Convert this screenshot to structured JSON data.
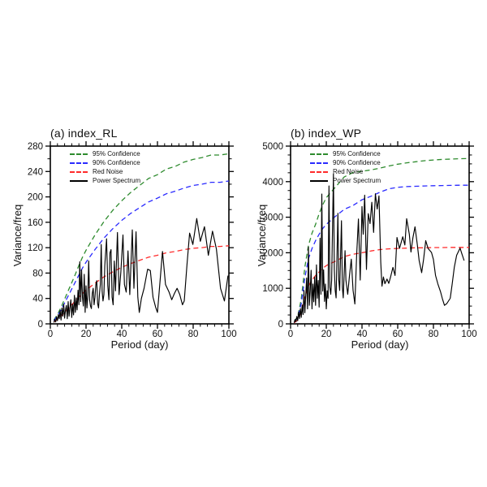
{
  "page": {
    "background": "#ffffff"
  },
  "chart_data": [
    {
      "type": "line",
      "title": "(a) index_RL",
      "xlabel": "Period (day)",
      "ylabel": "Variance/freq",
      "xlim": [
        0,
        100
      ],
      "ylim": [
        0,
        280
      ],
      "x_ticks": [
        0,
        20,
        40,
        60,
        80,
        100
      ],
      "y_ticks": [
        0,
        40,
        80,
        120,
        160,
        200,
        240,
        280
      ],
      "x_minor_step": 4,
      "y_minor_step": 20,
      "grid": false,
      "legend_position": "upper-left",
      "series": [
        {
          "name": "95% Confidence",
          "color": "#2e8b2e",
          "dashed": true,
          "x": [
            2,
            4,
            6,
            8,
            10,
            12,
            14,
            16,
            18,
            20,
            25,
            30,
            35,
            40,
            45,
            50,
            55,
            60,
            65,
            70,
            75,
            80,
            85,
            90,
            95,
            100
          ],
          "values": [
            6,
            15,
            26,
            39,
            52,
            65,
            78,
            92,
            105,
            116,
            140,
            161,
            179,
            194,
            207,
            218,
            229,
            235,
            244,
            248,
            255,
            259,
            262,
            266,
            266,
            268
          ]
        },
        {
          "name": "90% Confidence",
          "color": "#2a2aff",
          "dashed": true,
          "x": [
            2,
            4,
            6,
            8,
            10,
            12,
            14,
            16,
            18,
            20,
            25,
            30,
            35,
            40,
            45,
            50,
            55,
            60,
            65,
            70,
            75,
            80,
            85,
            90,
            95,
            100
          ],
          "values": [
            5,
            13,
            22,
            33,
            44,
            55,
            66,
            77,
            88,
            97,
            117,
            135,
            150,
            163,
            174,
            183,
            192,
            198,
            205,
            209,
            214,
            218,
            220,
            223,
            223,
            225
          ]
        },
        {
          "name": "Red Noise",
          "color": "#ff2a2a",
          "dashed": true,
          "x": [
            2,
            4,
            6,
            8,
            10,
            12,
            14,
            16,
            18,
            20,
            25,
            30,
            35,
            40,
            45,
            50,
            55,
            60,
            65,
            70,
            75,
            80,
            85,
            90,
            95,
            100
          ],
          "values": [
            3,
            7,
            12,
            18,
            24,
            30,
            36,
            42,
            48,
            53,
            64,
            74,
            82,
            89,
            95,
            100,
            105,
            108,
            112,
            114,
            117,
            119,
            120,
            122,
            122,
            123
          ]
        },
        {
          "name": "Power Spectrum",
          "color": "#000000",
          "dashed": false,
          "x": [
            2,
            2.5,
            3,
            3.5,
            4,
            4.5,
            5,
            5.5,
            6,
            6.5,
            7,
            7.5,
            8,
            8.5,
            9,
            9.5,
            10,
            10.5,
            11,
            11.5,
            12,
            12.5,
            13,
            13.5,
            14,
            14.5,
            15,
            15.5,
            16,
            16.5,
            17,
            17.5,
            18,
            18.5,
            19,
            19.5,
            20,
            20.5,
            21,
            21.5,
            22,
            22.5,
            23,
            23.5,
            24,
            24.5,
            25,
            25.5,
            26,
            26.5,
            27,
            27.5,
            28,
            28.5,
            29,
            29.5,
            30,
            30.5,
            31.5,
            32.2,
            32.8,
            33.4,
            34,
            34.6,
            35.2,
            35.8,
            36.5,
            37.6,
            38.5,
            39.5,
            40.7,
            41.5,
            42.5,
            43.5,
            44.5,
            45.9,
            46.8,
            48,
            49,
            49.8,
            51,
            52.5,
            54.5,
            56,
            57.5,
            59,
            60,
            61,
            62.8,
            64.5,
            66.5,
            68,
            69.5,
            71,
            72.5,
            74,
            75,
            76.5,
            78,
            79.8,
            82,
            84,
            86.3,
            88.5,
            90.8,
            93,
            95.3,
            97.5,
            99.5
          ],
          "values": [
            2,
            7,
            3,
            11,
            5,
            15,
            8,
            21,
            6,
            25,
            12,
            31,
            9,
            22,
            29,
            8,
            35,
            12,
            26,
            38,
            10,
            31,
            14,
            45,
            18,
            41,
            22,
            53,
            30,
            98,
            35,
            85,
            42,
            28,
            78,
            18,
            60,
            25,
            45,
            99,
            38,
            28,
            24,
            48,
            56,
            30,
            42,
            62,
            68,
            32,
            25,
            46,
            62,
            125,
            52,
            36,
            46,
            92,
            134,
            60,
            38,
            112,
            117,
            42,
            30,
            99,
            52,
            144,
            46,
            82,
            140,
            62,
            50,
            115,
            46,
            148,
            56,
            145,
            42,
            18,
            40,
            56,
            86,
            84,
            42,
            26,
            18,
            52,
            114,
            62,
            50,
            38,
            48,
            56,
            46,
            30,
            36,
            92,
            143,
            125,
            166,
            130,
            153,
            108,
            146,
            118,
            56,
            36,
            76
          ]
        }
      ]
    },
    {
      "type": "line",
      "title": "(b) index_WP",
      "xlabel": "Period (day)",
      "ylabel": "Variance/freq",
      "xlim": [
        0,
        100
      ],
      "ylim": [
        0,
        5000
      ],
      "x_ticks": [
        0,
        20,
        40,
        60,
        80,
        100
      ],
      "y_ticks": [
        0,
        1000,
        2000,
        3000,
        4000,
        5000
      ],
      "x_minor_step": 4,
      "y_minor_step": 250,
      "grid": false,
      "legend_position": "upper-left",
      "series": [
        {
          "name": "95% Confidence",
          "color": "#2e8b2e",
          "dashed": true,
          "x": [
            2,
            4,
            6,
            8,
            10,
            12,
            14,
            16,
            18,
            20,
            25,
            30,
            35,
            40,
            45,
            50,
            55,
            60,
            65,
            70,
            75,
            80,
            85,
            90,
            95,
            100
          ],
          "values": [
            60,
            210,
            700,
            1600,
            2200,
            2550,
            2800,
            3100,
            3350,
            3550,
            3840,
            4130,
            4260,
            4290,
            4330,
            4380,
            4440,
            4490,
            4530,
            4560,
            4590,
            4610,
            4625,
            4635,
            4645,
            4650
          ]
        },
        {
          "name": "90% Confidence",
          "color": "#2a2aff",
          "dashed": true,
          "x": [
            2,
            4,
            6,
            8,
            10,
            12,
            14,
            16,
            18,
            20,
            25,
            30,
            35,
            40,
            45,
            50,
            55,
            60,
            65,
            70,
            75,
            80,
            85,
            90,
            95,
            100
          ],
          "values": [
            50,
            175,
            580,
            1300,
            1830,
            2120,
            2340,
            2520,
            2680,
            2800,
            3020,
            3220,
            3330,
            3490,
            3590,
            3700,
            3800,
            3840,
            3860,
            3870,
            3880,
            3885,
            3890,
            3895,
            3900,
            3900
          ]
        },
        {
          "name": "Red Noise",
          "color": "#ff2a2a",
          "dashed": true,
          "x": [
            2,
            4,
            6,
            8,
            10,
            12,
            14,
            16,
            18,
            20,
            25,
            30,
            35,
            40,
            45,
            50,
            55,
            60,
            65,
            70,
            75,
            80,
            85,
            90,
            95,
            100
          ],
          "values": [
            30,
            110,
            340,
            750,
            1060,
            1230,
            1360,
            1460,
            1560,
            1640,
            1760,
            1890,
            1960,
            2000,
            2050,
            2090,
            2110,
            2120,
            2130,
            2140,
            2140,
            2145,
            2145,
            2150,
            2150,
            2150
          ]
        },
        {
          "name": "Power Spectrum",
          "color": "#000000",
          "dashed": false,
          "x": [
            2,
            2.5,
            3,
            3.5,
            4,
            4.5,
            5,
            5.5,
            6,
            6.5,
            7,
            7.5,
            8,
            8.5,
            9,
            9.5,
            10,
            10.5,
            11,
            11.5,
            12,
            12.5,
            13,
            13.5,
            14,
            14.5,
            15,
            15.5,
            16,
            16.5,
            17,
            17.5,
            18,
            18.5,
            19,
            19.5,
            20,
            20.5,
            21,
            21.5,
            22,
            22.5,
            23,
            24,
            24.5,
            25,
            25.5,
            26.5,
            27,
            27.5,
            28.5,
            29,
            29.5,
            30.5,
            31,
            32,
            33,
            34,
            35,
            36,
            37,
            38,
            39,
            40,
            40.7,
            41.5,
            42.5,
            43.5,
            44.5,
            45.5,
            46.5,
            47.5,
            48.5,
            49.5,
            50.5,
            51.2,
            52,
            52.8,
            54,
            55,
            56,
            57.3,
            58.5,
            59.6,
            61,
            62.8,
            64,
            65,
            66.5,
            67.4,
            68.5,
            69.7,
            71,
            72,
            73.4,
            74.5,
            75.7,
            77,
            78.9,
            80,
            81.2,
            82.5,
            84,
            85,
            86.2,
            87.5,
            89.4,
            90.5,
            91.7,
            93,
            94.9,
            96,
            97.2
          ],
          "values": [
            30,
            120,
            60,
            210,
            90,
            330,
            150,
            430,
            180,
            530,
            260,
            940,
            310,
            810,
            1290,
            420,
            2160,
            520,
            920,
            1510,
            420,
            1120,
            620,
            1320,
            520,
            1660,
            720,
            1220,
            470,
            2410,
            830,
            3650,
            920,
            1520,
            630,
            1120,
            420,
            930,
            720,
            3880,
            1030,
            830,
            1230,
            4220,
            1530,
            940,
            730,
            3110,
            1230,
            940,
            2900,
            1030,
            730,
            2060,
            1230,
            830,
            1360,
            1820,
            940,
            560,
            1930,
            2950,
            1230,
            3300,
            2520,
            3620,
            1530,
            3100,
            2820,
            3420,
            2570,
            3660,
            3230,
            3600,
            1730,
            1060,
            1320,
            1130,
            1260,
            1140,
            1320,
            1590,
            1360,
            2430,
            2120,
            2450,
            2220,
            2960,
            2520,
            2020,
            2420,
            2730,
            2220,
            1780,
            1440,
            1820,
            2340,
            2120,
            2010,
            1810,
            1360,
            1120,
            900,
            710,
            520,
            570,
            720,
            1120,
            1590,
            1930,
            2130,
            1960,
            1780
          ]
        }
      ]
    }
  ]
}
